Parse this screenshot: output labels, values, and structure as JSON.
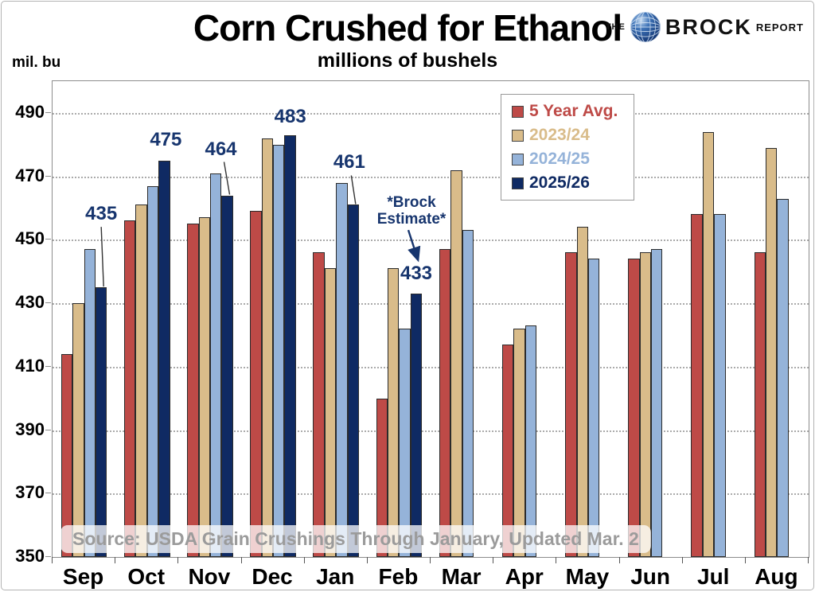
{
  "title": "Corn Crushed for Ethanol",
  "subtitle": "millions of bushels",
  "y_axis_unit": "mil. bu",
  "logo": {
    "the": "THE",
    "brock": "BROCK",
    "report": "REPORT",
    "icon": "globe-icon"
  },
  "source_note": "Source: USDA Grain Crushings Through January, Updated Mar. 2",
  "colors": {
    "five_year_avg": "#BE4A47",
    "y2023_24": "#D9BC8A",
    "y2024_25": "#95B3D9",
    "y2025_26": "#0F2A63",
    "annotation_text": "#17356E",
    "gridline": "#ababab",
    "source_text": "#9b9b9b"
  },
  "chart_data": {
    "type": "bar",
    "title": "Corn Crushed for Ethanol",
    "subtitle": "millions of bushels",
    "ylabel": "mil. bu",
    "ylim": [
      350,
      500
    ],
    "yticks": [
      350,
      370,
      390,
      410,
      430,
      450,
      470,
      490
    ],
    "grid": "horizontal-dotted",
    "legend_position": "top-right-inside",
    "categories": [
      "Sep",
      "Oct",
      "Nov",
      "Dec",
      "Jan",
      "Feb",
      "Mar",
      "Apr",
      "May",
      "Jun",
      "Jul",
      "Aug"
    ],
    "series": [
      {
        "name": "5 Year Avg.",
        "color": "#BE4A47",
        "values": [
          414,
          456,
          455,
          459,
          446,
          400,
          447,
          417,
          446,
          444,
          458,
          446
        ]
      },
      {
        "name": "2023/24",
        "color": "#D9BC8A",
        "values": [
          430,
          461,
          457,
          482,
          441,
          441,
          472,
          422,
          454,
          446,
          484,
          479
        ]
      },
      {
        "name": "2024/25",
        "color": "#95B3D9",
        "values": [
          447,
          467,
          471,
          480,
          468,
          422,
          453,
          423,
          444,
          447,
          458,
          463
        ]
      },
      {
        "name": "2025/26",
        "color": "#0F2A63",
        "values": [
          435,
          475,
          464,
          483,
          461,
          433,
          null,
          null,
          null,
          null,
          null,
          null
        ]
      }
    ],
    "annotations": [
      {
        "text": "435",
        "category": "Sep",
        "series": "2025/26",
        "dx": 0,
        "gap": 78,
        "leader": true
      },
      {
        "text": "475",
        "category": "Oct",
        "series": "2025/26",
        "dx": 2,
        "gap": 12,
        "leader": false
      },
      {
        "text": "464",
        "category": "Nov",
        "series": "2025/26",
        "dx": -8,
        "gap": 44,
        "leader": true
      },
      {
        "text": "483",
        "category": "Dec",
        "series": "2025/26",
        "dx": 0,
        "gap": 9,
        "leader": false
      },
      {
        "text": "461",
        "category": "Jan",
        "series": "2025/26",
        "dx": -5,
        "gap": 39,
        "leader": true
      },
      {
        "text": "433",
        "category": "Feb",
        "series": "2025/26",
        "dx": 0,
        "gap": 11,
        "leader": false
      }
    ],
    "callout": {
      "lines": [
        "*Brock",
        "Estimate*"
      ],
      "category": "Feb",
      "series": "2025/26",
      "arrow": true
    }
  }
}
